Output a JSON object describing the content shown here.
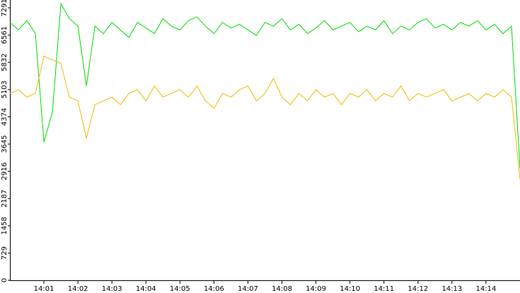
{
  "chart_data": {
    "type": "line",
    "x": [
      840,
      840.25,
      840.5,
      840.75,
      841,
      841.25,
      841.5,
      841.75,
      842,
      842.25,
      842.5,
      842.75,
      843,
      843.25,
      843.5,
      843.75,
      844,
      844.25,
      844.5,
      844.75,
      845,
      845.25,
      845.5,
      845.75,
      846,
      846.25,
      846.5,
      846.75,
      847,
      847.25,
      847.5,
      847.75,
      848,
      848.25,
      848.5,
      848.75,
      849,
      849.25,
      849.5,
      849.75,
      850,
      850.25,
      850.5,
      850.75,
      851,
      851.25,
      851.5,
      851.75,
      852,
      852.25,
      852.5,
      852.75,
      853,
      853.25,
      853.5,
      853.75,
      854,
      854.25,
      854.5,
      854.75,
      855
    ],
    "series": [
      {
        "color": "#00dd00",
        "values": [
          6900,
          6700,
          6950,
          6600,
          3700,
          4500,
          7400,
          7000,
          6800,
          5200,
          6800,
          6600,
          6900,
          6700,
          6500,
          6900,
          6750,
          6600,
          7000,
          6800,
          6700,
          6950,
          7050,
          6800,
          6600,
          6900,
          6750,
          6850,
          6700,
          6550,
          6900,
          6800,
          7000,
          6700,
          6850,
          6600,
          6750,
          6950,
          6700,
          6800,
          6900,
          6650,
          6800,
          6700,
          6950,
          6600,
          6800,
          6700,
          6900,
          7000,
          6750,
          6850,
          6700,
          6900,
          6800,
          6950,
          6700,
          6850,
          6600,
          6800,
          3000
        ]
      },
      {
        "color": "#f5b800",
        "values": [
          5000,
          5100,
          4900,
          5000,
          6000,
          5900,
          5800,
          4900,
          4800,
          3800,
          4700,
          4800,
          4900,
          4700,
          5000,
          5100,
          4800,
          5200,
          4900,
          5000,
          5100,
          4900,
          5200,
          4800,
          4600,
          5000,
          4900,
          5100,
          5200,
          4800,
          5000,
          5400,
          4900,
          4700,
          5000,
          4800,
          5100,
          4900,
          5000,
          4700,
          5000,
          4900,
          5100,
          4800,
          5000,
          4900,
          5200,
          4800,
          5000,
          4900,
          5000,
          5100,
          4800,
          4900,
          5000,
          4800,
          5000,
          4900,
          5100,
          4900,
          2700
        ]
      }
    ],
    "xlim": [
      840,
      855
    ],
    "xticks": [
      {
        "value": 841,
        "label": "14:01"
      },
      {
        "value": 842,
        "label": "14:02"
      },
      {
        "value": 843,
        "label": "14:03"
      },
      {
        "value": 844,
        "label": "14:04"
      },
      {
        "value": 845,
        "label": "14:05"
      },
      {
        "value": 846,
        "label": "14:06"
      },
      {
        "value": 847,
        "label": "14:07"
      },
      {
        "value": 848,
        "label": "14:08"
      },
      {
        "value": 849,
        "label": "14:09"
      },
      {
        "value": 850,
        "label": "14:10"
      },
      {
        "value": 851,
        "label": "14:11"
      },
      {
        "value": 852,
        "label": "14:12"
      },
      {
        "value": 853,
        "label": "14:13"
      },
      {
        "value": 854,
        "label": "14:14"
      }
    ],
    "ylim": [
      0,
      7500
    ],
    "yticks": [
      0,
      729,
      1458,
      2187,
      2916,
      3645,
      4374,
      5103,
      5832,
      6561,
      7291
    ]
  }
}
